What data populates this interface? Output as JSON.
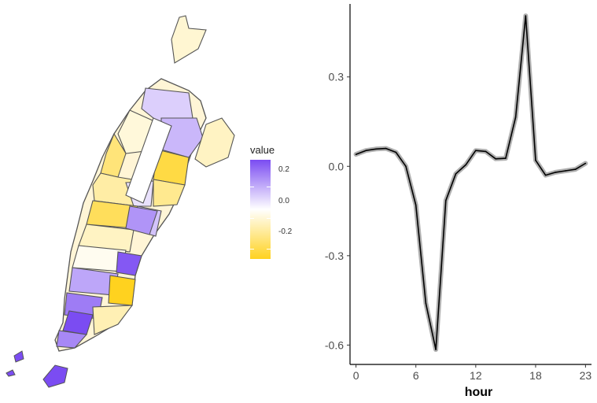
{
  "map": {
    "legend": {
      "title": "value",
      "ticks": [
        "0.2",
        "0.0",
        "-0.2"
      ],
      "colors": {
        "high": "#7b4cf2",
        "mid": "#ffffff",
        "low": "#ffd21f"
      }
    },
    "region_fill_levels": [
      0.08,
      -0.05,
      0.12,
      -0.18,
      -0.25,
      -0.12,
      0.05,
      -0.15,
      -0.22,
      0.1,
      -0.08,
      0.18,
      -0.02,
      0.28,
      0.15,
      -0.3,
      0.22,
      0.3,
      -0.1,
      0.2
    ]
  },
  "chart_data": {
    "type": "line",
    "xlabel": "hour",
    "ylabel": "",
    "xlim": [
      -0.6,
      23.6
    ],
    "ylim": [
      -0.665,
      0.545
    ],
    "xticks": [
      0,
      6,
      12,
      18,
      23
    ],
    "xtick_labels": [
      "0",
      "6",
      "12",
      "18",
      "23"
    ],
    "yticks": [
      -0.6,
      -0.3,
      0.0,
      0.3
    ],
    "ytick_labels": [
      "-0.6",
      "-0.3",
      "0.0",
      "0.3"
    ],
    "band": "light grey ribbon around the line",
    "grid": false,
    "series": [
      {
        "x": [
          0,
          1,
          2,
          3,
          4,
          5,
          6,
          7,
          8,
          9,
          10,
          11,
          12,
          13,
          14,
          15,
          16,
          17,
          18,
          19,
          20,
          21,
          22,
          23
        ],
        "y": [
          0.04,
          0.053,
          0.058,
          0.06,
          0.047,
          0.0,
          -0.13,
          -0.46,
          -0.615,
          -0.115,
          -0.025,
          0.005,
          0.053,
          0.05,
          0.025,
          0.027,
          0.165,
          0.505,
          0.02,
          -0.03,
          -0.02,
          -0.015,
          -0.01,
          0.01
        ]
      }
    ]
  }
}
